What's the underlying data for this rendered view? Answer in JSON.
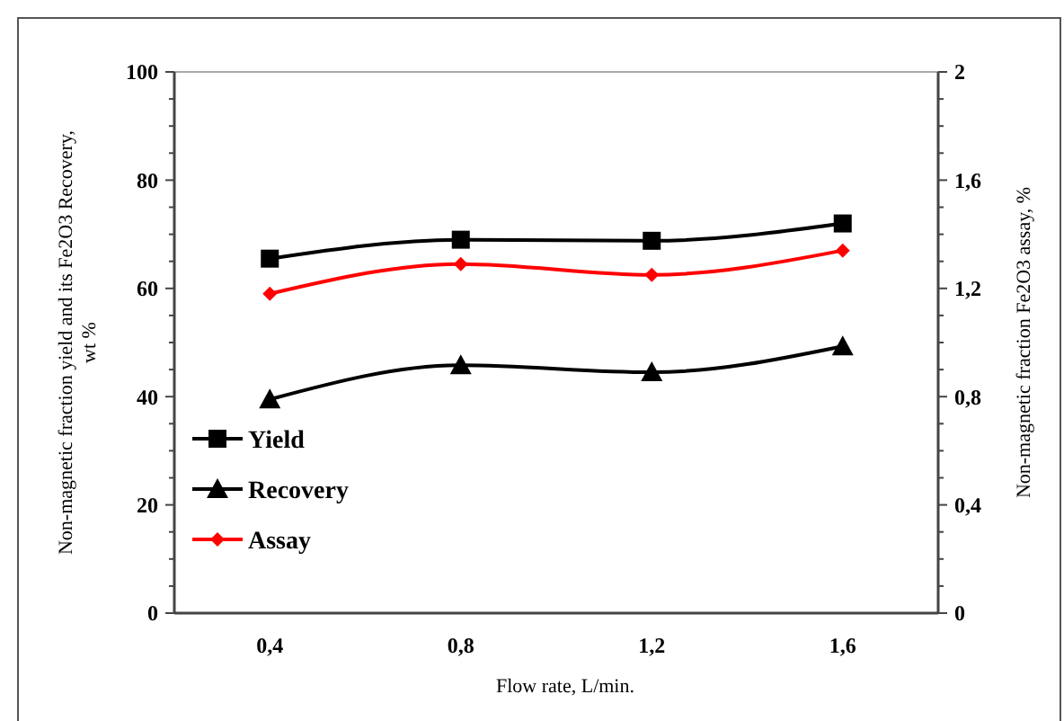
{
  "chart_data": {
    "type": "line",
    "xlabel": "Flow rate, L/min.",
    "ylabel": "Non-magnetic fraction yield and its Fe2O3 Recovery, wt %",
    "y2label": "Non-magnetic fraction Fe2O3 assay, %",
    "categories": [
      "0,4",
      "0,8",
      "1,2",
      "1,6"
    ],
    "ylim": [
      0,
      100
    ],
    "yticks": [
      0,
      {
        "value": 5,
        "label": null
      },
      {
        "value": 10,
        "label": null
      },
      {
        "value": 15,
        "label": null
      },
      20,
      {
        "value": 25,
        "label": null
      },
      {
        "value": 30,
        "label": null
      },
      {
        "value": 35,
        "label": null
      },
      40,
      {
        "value": 45,
        "label": null
      },
      {
        "value": 50,
        "label": null
      },
      {
        "value": 55,
        "label": null
      },
      60,
      {
        "value": 65,
        "label": null
      },
      {
        "value": 70,
        "label": null
      },
      {
        "value": 75,
        "label": null
      },
      80,
      {
        "value": 85,
        "label": null
      },
      {
        "value": 90,
        "label": null
      },
      {
        "value": 95,
        "label": null
      },
      100
    ],
    "y2lim": [
      0,
      2
    ],
    "y2ticks": [
      0,
      {
        "value": 0.1,
        "label": null
      },
      {
        "value": 0.2,
        "label": null
      },
      {
        "value": 0.3,
        "label": null
      },
      {
        "value": 0.4,
        "label": "0,4"
      },
      {
        "value": 0.5,
        "label": null
      },
      {
        "value": 0.6,
        "label": null
      },
      {
        "value": 0.7,
        "label": null
      },
      {
        "value": 0.8,
        "label": "0,8"
      },
      {
        "value": 0.9,
        "label": null
      },
      {
        "value": 1.0,
        "label": null
      },
      {
        "value": 1.1,
        "label": null
      },
      {
        "value": 1.2,
        "label": "1,2"
      },
      {
        "value": 1.3,
        "label": null
      },
      {
        "value": 1.4,
        "label": null
      },
      {
        "value": 1.5,
        "label": null
      },
      {
        "value": 1.6,
        "label": "1,6"
      },
      {
        "value": 1.7,
        "label": null
      },
      {
        "value": 1.8,
        "label": null
      },
      {
        "value": 1.9,
        "label": null
      },
      2
    ],
    "series": [
      {
        "name": "Yield",
        "color": "#000000",
        "marker": "square",
        "values": [
          65.5,
          69,
          68.8,
          72
        ]
      },
      {
        "name": "Recovery",
        "color": "#000000",
        "marker": "triangle",
        "values": [
          39.5,
          45.8,
          44.5,
          49.3
        ]
      },
      {
        "name": "Assay",
        "color": "#ff0000",
        "marker": "diamond",
        "axis": "y2",
        "values": [
          1.18,
          1.29,
          1.25,
          1.34
        ]
      }
    ],
    "legend": "left",
    "grid": false,
    "line_style": "solid"
  }
}
